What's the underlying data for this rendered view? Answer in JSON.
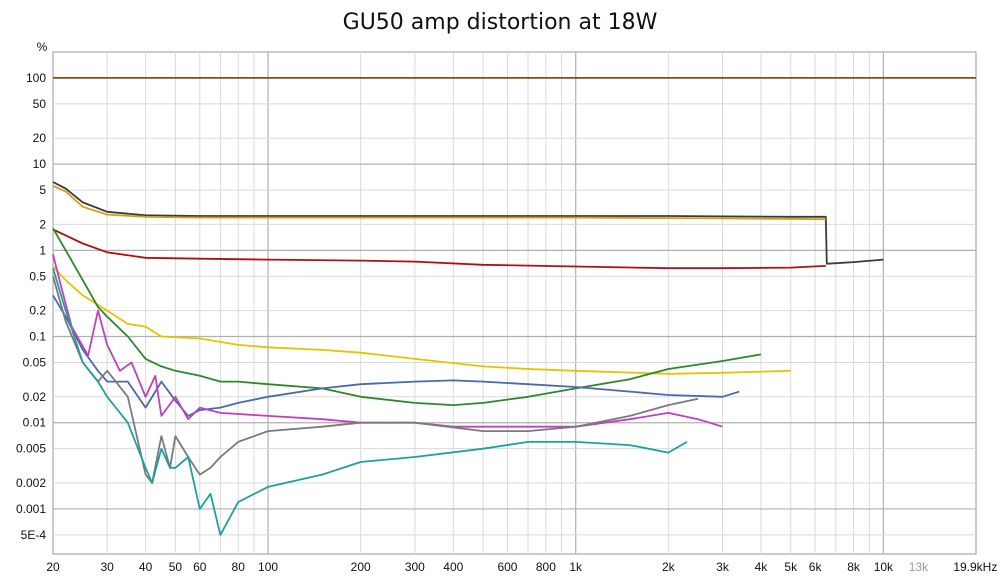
{
  "chart_data": {
    "type": "line",
    "title": "GU50 amp distortion at 18W",
    "ylabel": "%",
    "xlabel": "",
    "x_scale": "log",
    "y_scale": "log",
    "xlim": [
      20,
      20000
    ],
    "ylim": [
      0.0003,
      200
    ],
    "grid": true,
    "legend": "none",
    "x_ticks": [
      {
        "value": 20,
        "label": "20"
      },
      {
        "value": 30,
        "label": "30"
      },
      {
        "value": 40,
        "label": "40"
      },
      {
        "value": 50,
        "label": "50"
      },
      {
        "value": 60,
        "label": "60"
      },
      {
        "value": 80,
        "label": "80"
      },
      {
        "value": 100,
        "label": "100"
      },
      {
        "value": 200,
        "label": "200"
      },
      {
        "value": 300,
        "label": "300"
      },
      {
        "value": 400,
        "label": "400"
      },
      {
        "value": 600,
        "label": "600"
      },
      {
        "value": 800,
        "label": "800"
      },
      {
        "value": 1000,
        "label": "1k"
      },
      {
        "value": 2000,
        "label": "2k"
      },
      {
        "value": 3000,
        "label": "3k"
      },
      {
        "value": 4000,
        "label": "4k"
      },
      {
        "value": 5000,
        "label": "5k"
      },
      {
        "value": 6000,
        "label": "6k"
      },
      {
        "value": 8000,
        "label": "8k"
      },
      {
        "value": 10000,
        "label": "10k"
      },
      {
        "value": 13000,
        "label": "13k",
        "dim": true
      },
      {
        "value": 19900,
        "label": "19.9kHz"
      }
    ],
    "y_ticks": [
      {
        "value": 100,
        "label": "100"
      },
      {
        "value": 50,
        "label": "50"
      },
      {
        "value": 20,
        "label": "20"
      },
      {
        "value": 10,
        "label": "10"
      },
      {
        "value": 5,
        "label": "5"
      },
      {
        "value": 2,
        "label": "2"
      },
      {
        "value": 1,
        "label": "1"
      },
      {
        "value": 0.5,
        "label": "0.5"
      },
      {
        "value": 0.2,
        "label": "0.2"
      },
      {
        "value": 0.1,
        "label": "0.1"
      },
      {
        "value": 0.05,
        "label": "0.05"
      },
      {
        "value": 0.02,
        "label": "0.02"
      },
      {
        "value": 0.01,
        "label": "0.01"
      },
      {
        "value": 0.005,
        "label": "0.005"
      },
      {
        "value": 0.002,
        "label": "0.002"
      },
      {
        "value": 0.001,
        "label": "0.001"
      },
      {
        "value": 0.0005,
        "label": "5E-4"
      }
    ],
    "series": [
      {
        "color": "#8b4a0f",
        "x": [
          20,
          20000
        ],
        "y": [
          100,
          100
        ]
      },
      {
        "color": "#3a3a3a",
        "x": [
          20,
          22,
          25,
          30,
          40,
          60,
          100,
          200,
          500,
          1000,
          2000,
          5000,
          6500,
          6550,
          6600,
          8000,
          10000
        ],
        "y": [
          6.2,
          5.2,
          3.6,
          2.8,
          2.55,
          2.5,
          2.5,
          2.5,
          2.5,
          2.5,
          2.5,
          2.45,
          2.45,
          0.7,
          0.7,
          0.73,
          0.78
        ]
      },
      {
        "color": "#d4a017",
        "x": [
          20,
          22,
          25,
          30,
          40,
          60,
          100,
          300,
          1000,
          3000,
          6500
        ],
        "y": [
          5.6,
          4.8,
          3.2,
          2.6,
          2.45,
          2.4,
          2.4,
          2.4,
          2.4,
          2.35,
          2.3
        ]
      },
      {
        "color": "#b01010",
        "x": [
          20,
          25,
          30,
          40,
          60,
          100,
          200,
          300,
          500,
          1000,
          2000,
          3000,
          5000,
          6500
        ],
        "y": [
          1.75,
          1.2,
          0.95,
          0.82,
          0.8,
          0.78,
          0.76,
          0.74,
          0.68,
          0.65,
          0.62,
          0.62,
          0.63,
          0.66
        ]
      },
      {
        "color": "#e6c300",
        "x": [
          20,
          22,
          25,
          30,
          35,
          40,
          45,
          60,
          80,
          100,
          150,
          200,
          300,
          500,
          700,
          1000,
          2000,
          3000,
          5000
        ],
        "y": [
          0.65,
          0.45,
          0.3,
          0.2,
          0.14,
          0.13,
          0.1,
          0.095,
          0.08,
          0.075,
          0.07,
          0.065,
          0.055,
          0.045,
          0.042,
          0.04,
          0.037,
          0.038,
          0.04
        ]
      },
      {
        "color": "#2a8a2a",
        "x": [
          20,
          22,
          25,
          28,
          30,
          35,
          40,
          45,
          50,
          60,
          70,
          80,
          100,
          150,
          200,
          300,
          400,
          500,
          700,
          1000,
          1500,
          2000,
          3000,
          4000
        ],
        "y": [
          1.8,
          1.0,
          0.45,
          0.22,
          0.17,
          0.1,
          0.055,
          0.045,
          0.04,
          0.035,
          0.03,
          0.03,
          0.028,
          0.025,
          0.02,
          0.017,
          0.016,
          0.017,
          0.02,
          0.025,
          0.032,
          0.042,
          0.052,
          0.062
        ]
      },
      {
        "color": "#4a6aa8",
        "x": [
          20,
          22,
          25,
          28,
          30,
          35,
          40,
          45,
          50,
          55,
          60,
          70,
          80,
          100,
          150,
          200,
          300,
          400,
          500,
          700,
          1000,
          1500,
          2000,
          3000,
          3400
        ],
        "y": [
          0.3,
          0.17,
          0.07,
          0.04,
          0.03,
          0.03,
          0.015,
          0.03,
          0.018,
          0.012,
          0.014,
          0.015,
          0.017,
          0.02,
          0.025,
          0.028,
          0.03,
          0.031,
          0.03,
          0.028,
          0.026,
          0.023,
          0.021,
          0.02,
          0.023
        ]
      },
      {
        "color": "#c040c0",
        "x": [
          20,
          21,
          23,
          26,
          28,
          30,
          33,
          36,
          40,
          43,
          45,
          50,
          55,
          60,
          70,
          100,
          150,
          200,
          300,
          400,
          500,
          700,
          1000,
          1500,
          2000,
          2500,
          3000
        ],
        "y": [
          0.9,
          0.45,
          0.13,
          0.06,
          0.2,
          0.08,
          0.04,
          0.05,
          0.02,
          0.035,
          0.012,
          0.02,
          0.011,
          0.015,
          0.013,
          0.012,
          0.011,
          0.01,
          0.01,
          0.009,
          0.009,
          0.009,
          0.009,
          0.011,
          0.013,
          0.011,
          0.009
        ]
      },
      {
        "color": "#7a7a7a",
        "x": [
          20,
          22,
          25,
          28,
          30,
          35,
          40,
          42,
          45,
          48,
          50,
          55,
          60,
          65,
          70,
          80,
          100,
          150,
          200,
          300,
          500,
          700,
          1000,
          1500,
          2000,
          2500
        ],
        "y": [
          0.5,
          0.15,
          0.05,
          0.03,
          0.04,
          0.02,
          0.0025,
          0.002,
          0.007,
          0.003,
          0.007,
          0.004,
          0.0025,
          0.003,
          0.004,
          0.006,
          0.008,
          0.009,
          0.01,
          0.01,
          0.008,
          0.008,
          0.009,
          0.012,
          0.016,
          0.019
        ]
      },
      {
        "color": "#1fa0a0",
        "x": [
          20,
          22,
          25,
          28,
          30,
          35,
          40,
          42,
          45,
          48,
          50,
          55,
          60,
          65,
          70,
          80,
          100,
          150,
          200,
          300,
          500,
          700,
          1000,
          1500,
          2000,
          2300
        ],
        "y": [
          0.62,
          0.2,
          0.05,
          0.03,
          0.02,
          0.01,
          0.003,
          0.002,
          0.005,
          0.003,
          0.003,
          0.004,
          0.001,
          0.0015,
          0.0005,
          0.0012,
          0.0018,
          0.0025,
          0.0035,
          0.004,
          0.005,
          0.006,
          0.006,
          0.0055,
          0.0045,
          0.006
        ]
      }
    ]
  }
}
